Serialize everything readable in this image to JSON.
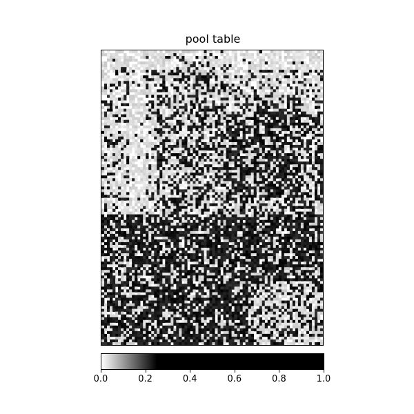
{
  "chart_data": {
    "type": "heatmap",
    "title": "pool table",
    "xlabel": "",
    "ylabel": "",
    "axes_ticks_visible": false,
    "colormap": {
      "name": "grayscale",
      "stops": [
        {
          "value": 0.0,
          "color": "#ffffff"
        },
        {
          "value": 0.25,
          "color": "#000000"
        },
        {
          "value": 1.0,
          "color": "#000000"
        }
      ]
    },
    "colorbar": {
      "orientation": "horizontal",
      "placement": "bottom",
      "vmin": 0.0,
      "vmax": 1.0,
      "ticks": [
        "0.0",
        "0.2",
        "0.4",
        "0.6",
        "0.8",
        "1.0"
      ],
      "tick_values": [
        0.0,
        0.2,
        0.4,
        0.6,
        0.8,
        1.0
      ]
    },
    "grid": false
  }
}
